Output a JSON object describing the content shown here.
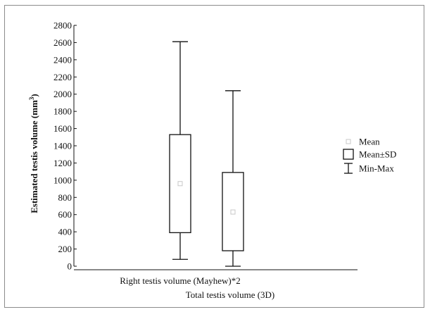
{
  "chart_data": {
    "type": "boxplot",
    "title": "",
    "xlabel": "",
    "ylabel": "Estimated testis volume (mm",
    "ylabel_superscript": "3",
    "ylabel_close": ")",
    "ylim": [
      0,
      2800
    ],
    "yticks": [
      0,
      200,
      400,
      600,
      800,
      1000,
      1200,
      1400,
      1600,
      1800,
      2000,
      2200,
      2400,
      2600,
      2800
    ],
    "grid": false,
    "legend_position": "right",
    "categories": [
      "Right testis volume (Mayhew)*2",
      "Total testis volume (3D)"
    ],
    "series": [
      {
        "category": "Right testis volume (Mayhew)*2",
        "mean": 960,
        "mean_minus_sd": 390,
        "mean_plus_sd": 1530,
        "min": 80,
        "max": 2610
      },
      {
        "category": "Total testis volume (3D)",
        "mean": 630,
        "mean_minus_sd": 180,
        "mean_plus_sd": 1090,
        "min": 0,
        "max": 2040
      }
    ],
    "legend": [
      {
        "marker": "point",
        "label": "Mean"
      },
      {
        "marker": "box",
        "label": "Mean±SD"
      },
      {
        "marker": "whisker",
        "label": "Min-Max"
      }
    ],
    "colors": {
      "line": "#111111",
      "mean_marker": "#c8c8c8",
      "frame": "#8c8c8c"
    }
  }
}
